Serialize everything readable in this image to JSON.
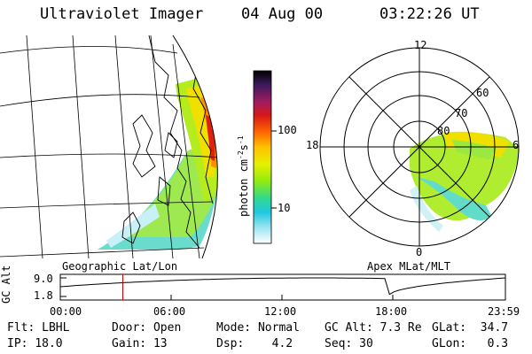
{
  "header": {
    "instrument": "Ultraviolet Imager",
    "date": "04 Aug 00",
    "time": "03:22:26 UT"
  },
  "geo_panel": {
    "label": "Geographic Lat/Lon"
  },
  "polar_panel": {
    "label": "Apex MLat/MLT",
    "mlt_labels": {
      "noon": "12",
      "dusk": "18",
      "dawn": "6",
      "midnight": "0"
    },
    "lat_labels": [
      "60",
      "70",
      "80"
    ]
  },
  "colorbar": {
    "unit_label": "photon cm",
    "unit_sup1": "-2",
    "unit_mid": "s",
    "unit_sup2": "-1",
    "tick_100": "100",
    "tick_10": "10",
    "colors": [
      "#000000",
      "#2a1548",
      "#4a1f6e",
      "#8a2060",
      "#c81020",
      "#ff3c00",
      "#ff9a00",
      "#f0e000",
      "#b0f000",
      "#40e060",
      "#20d0e0",
      "#7ce4f4",
      "#d8f4fa",
      "#ffffff"
    ]
  },
  "altitude_plot": {
    "ylabel": "GC Alt",
    "ytick_top": "9.0",
    "ytick_bottom": "1.8",
    "xticks": [
      "00:00",
      "06:00",
      "12:00",
      "18:00",
      "23:59"
    ],
    "marker_time_hours": 3.37,
    "marker_color": "#cc0000"
  },
  "status": {
    "flt_label": "Flt:",
    "flt_value": "LBHL",
    "ip_label": "IP:",
    "ip_value": "18.0",
    "door_label": "Door:",
    "door_value": "Open",
    "gain_label": "Gain:",
    "gain_value": "13",
    "mode_label": "Mode:",
    "mode_value": "Normal",
    "dsp_label": "Dsp:",
    "dsp_value": "4.2",
    "gcalt_label": "GC Alt:",
    "gcalt_value": "7.3 Re",
    "seq_label": "Seq:",
    "seq_value": "30",
    "glat_label": "GLat:",
    "glat_value": "34.7",
    "glon_label": "GLon:",
    "glon_value": "0.3"
  }
}
